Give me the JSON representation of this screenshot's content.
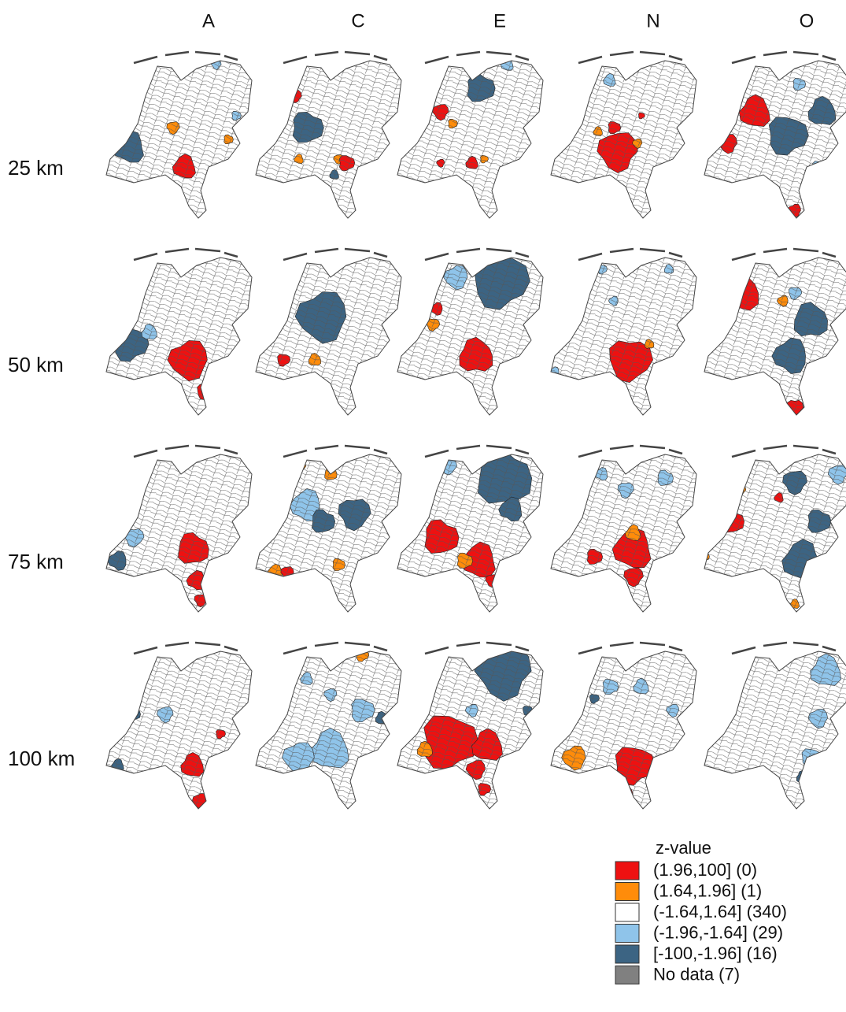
{
  "columns": [
    "A",
    "C",
    "E",
    "N",
    "O"
  ],
  "rows": [
    "25 km",
    "50 km",
    "75 km",
    "100 km"
  ],
  "legend": {
    "title": "z-value",
    "items": [
      {
        "label": "(1.96,100] (0)",
        "color": "#ee1111"
      },
      {
        "label": "(1.64,1.96] (1)",
        "color": "#ff8c0a"
      },
      {
        "label": "(-1.64,1.64] (340)",
        "color": "#ffffff"
      },
      {
        "label": "(-1.96,-1.64] (29)",
        "color": "#8fc4ea"
      },
      {
        "label": "[-100,-1.96] (16)",
        "color": "#3c6483"
      },
      {
        "label": "No data (7)",
        "color": "#808080"
      }
    ]
  }
}
